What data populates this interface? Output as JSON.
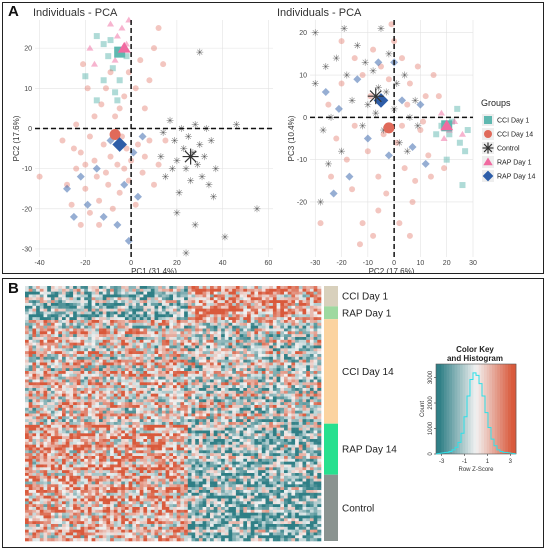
{
  "panel_a_letter": "A",
  "panel_b_letter": "B",
  "colors": {
    "cci1": "#5fb8b0",
    "cci14": "#e06a5a",
    "control": "#333333",
    "rap1": "#f06aa0",
    "rap14": "#2d5da8",
    "heat_low": "#2f7f86",
    "heat_high": "#d9593b",
    "heat_mid": "#f2f2f2",
    "bar_cci1": "#d8d0bc",
    "bar_rap1": "#9ed9a0",
    "bar_cci14": "#fbd3a0",
    "bar_rap14": "#27e08f",
    "bar_control": "#8a9390"
  },
  "legend": {
    "title": "Groups",
    "items": [
      {
        "key": "cci1",
        "label": "CCI Day 1",
        "shape": "square"
      },
      {
        "key": "cci14",
        "label": "CCI Day 14",
        "shape": "circle"
      },
      {
        "key": "control",
        "label": "Control",
        "shape": "asterisk"
      },
      {
        "key": "rap1",
        "label": "RAP Day 1",
        "shape": "triangle"
      },
      {
        "key": "rap14",
        "label": "RAP Day 14",
        "shape": "diamond"
      }
    ]
  },
  "heatmap": {
    "row_groups": [
      "CCI Day 1",
      "RAP Day 1",
      "CCI Day 14",
      "RAP Day 14",
      "Control"
    ],
    "group_fraction": [
      0.08,
      0.05,
      0.41,
      0.2,
      0.26
    ],
    "color_key": {
      "title_line1": "Color Key",
      "title_line2": "and Histogram",
      "ylabel": "Count",
      "yticks": [
        "0",
        "1000",
        "2000",
        "3000"
      ],
      "xlabel": "Row Z-Score",
      "xticks": [
        "-3",
        "-1",
        "1",
        "3"
      ]
    }
  },
  "chart_data": [
    {
      "type": "scatter",
      "title": "Individuals - PCA",
      "xlabel": "PC1 (31.4%)",
      "ylabel": "PC2 (17.6%)",
      "xlim": [
        -42,
        62
      ],
      "ylim": [
        -32,
        27
      ],
      "xticks": [
        -40,
        -20,
        0,
        20,
        40,
        60
      ],
      "yticks": [
        -30,
        -20,
        -10,
        0,
        10,
        20
      ],
      "grid": true,
      "reference_lines": {
        "x": 0,
        "y": 0
      },
      "centroids": [
        {
          "group": "CCI Day 1",
          "x": -5,
          "y": 19
        },
        {
          "group": "RAP Day 1",
          "x": -3,
          "y": 20
        },
        {
          "group": "CCI Day 14",
          "x": -7,
          "y": -1.5
        },
        {
          "group": "RAP Day 14",
          "x": -5,
          "y": -4
        },
        {
          "group": "Control",
          "x": 26,
          "y": -7
        }
      ],
      "series": [
        {
          "name": "CCI Day 1",
          "points": [
            [
              -15,
              23
            ],
            [
              -12,
              21
            ],
            [
              -10,
              18
            ],
            [
              -9,
              22
            ],
            [
              -8,
              15
            ],
            [
              -12,
              12
            ],
            [
              -7,
              9
            ],
            [
              -6,
              7
            ],
            [
              -5,
              12
            ],
            [
              -15,
              7
            ],
            [
              -2,
              18
            ],
            [
              -20,
              13
            ]
          ]
        },
        {
          "name": "CCI Day 14",
          "points": [
            [
              -30,
              -3
            ],
            [
              -25,
              -5
            ],
            [
              -22,
              -6
            ],
            [
              -20,
              -9
            ],
            [
              -18,
              -2
            ],
            [
              -16,
              -8
            ],
            [
              -15,
              -12
            ],
            [
              -14,
              -18
            ],
            [
              -12,
              -4
            ],
            [
              -11,
              -11
            ],
            [
              -10,
              -14
            ],
            [
              -9,
              -7
            ],
            [
              -8,
              -20
            ],
            [
              -6,
              -9
            ],
            [
              -5,
              -16
            ],
            [
              -4,
              -2
            ],
            [
              -3,
              -10
            ],
            [
              -2,
              -5
            ],
            [
              -1,
              -13
            ],
            [
              0,
              -8
            ],
            [
              2,
              -19
            ],
            [
              3,
              -4
            ],
            [
              5,
              -11
            ],
            [
              6,
              -7
            ],
            [
              8,
              -3
            ],
            [
              10,
              -14
            ],
            [
              12,
              -9
            ],
            [
              -28,
              -14
            ],
            [
              -26,
              -19
            ],
            [
              -24,
              -10
            ],
            [
              -20,
              -15
            ],
            [
              -18,
              -21
            ],
            [
              -22,
              -24
            ],
            [
              -16,
              3
            ],
            [
              -13,
              6
            ],
            [
              -11,
              10
            ],
            [
              -9,
              14
            ],
            [
              -7,
              3
            ],
            [
              -5,
              5
            ],
            [
              -3,
              8
            ],
            [
              -1,
              14
            ],
            [
              2,
              10
            ],
            [
              4,
              17
            ],
            [
              6,
              5
            ],
            [
              8,
              12
            ],
            [
              10,
              20
            ],
            [
              12,
              25
            ],
            [
              14,
              16
            ],
            [
              -19,
              10
            ],
            [
              -21,
              16
            ],
            [
              -24,
              1
            ],
            [
              -40,
              -12
            ],
            [
              15,
              -3
            ],
            [
              -14,
              -24
            ]
          ]
        },
        {
          "name": "Control",
          "points": [
            [
              14,
              -1
            ],
            [
              17,
              2
            ],
            [
              19,
              -3
            ],
            [
              20,
              -8
            ],
            [
              22,
              0
            ],
            [
              23,
              -5
            ],
            [
              24,
              -10
            ],
            [
              25,
              -2
            ],
            [
              26,
              -13
            ],
            [
              27,
              -6
            ],
            [
              28,
              1
            ],
            [
              29,
              -9
            ],
            [
              30,
              -4
            ],
            [
              31,
              -12
            ],
            [
              32,
              -7
            ],
            [
              33,
              0
            ],
            [
              34,
              -14
            ],
            [
              35,
              -3
            ],
            [
              21,
              -16
            ],
            [
              18,
              -10
            ],
            [
              15,
              -12
            ],
            [
              13,
              -7
            ],
            [
              37,
              -10
            ],
            [
              41,
              -27
            ],
            [
              55,
              -20
            ],
            [
              30,
              19
            ],
            [
              24,
              -31
            ],
            [
              20,
              -21
            ],
            [
              36,
              -17
            ],
            [
              28,
              -24
            ],
            [
              46,
              1
            ]
          ]
        },
        {
          "name": "RAP Day 1",
          "points": [
            [
              -18,
              20
            ],
            [
              -4,
              25
            ],
            [
              -6,
              23
            ],
            [
              -1,
              27
            ],
            [
              -9,
              26
            ],
            [
              -16,
              16
            ],
            [
              -2,
              21
            ],
            [
              -7,
              17
            ]
          ]
        },
        {
          "name": "RAP Day 14",
          "points": [
            [
              -28,
              -15
            ],
            [
              -22,
              -12
            ],
            [
              -19,
              -19
            ],
            [
              -15,
              -10
            ],
            [
              -12,
              -22
            ],
            [
              -9,
              -3
            ],
            [
              -6,
              -24
            ],
            [
              -3,
              -14
            ],
            [
              -1,
              -28
            ],
            [
              1,
              -6
            ],
            [
              3,
              -17
            ],
            [
              -25,
              -22
            ],
            [
              5,
              -2
            ]
          ]
        }
      ]
    },
    {
      "type": "scatter",
      "title": "Individuals - PCA",
      "xlabel": "PC2 (17.6%)",
      "ylabel": "PC3 (10.4%)",
      "xlim": [
        -32,
        30
      ],
      "ylim": [
        -33,
        23
      ],
      "xticks": [
        -30,
        -20,
        -10,
        0,
        10,
        20,
        30
      ],
      "yticks": [
        -20,
        -10,
        0,
        10,
        20
      ],
      "grid": true,
      "reference_lines": {
        "x": 0,
        "y": 0
      },
      "centroids": [
        {
          "group": "CCI Day 1",
          "x": 20,
          "y": -2
        },
        {
          "group": "RAP Day 1",
          "x": 20,
          "y": -2
        },
        {
          "group": "CCI Day 14",
          "x": -2,
          "y": -2.5
        },
        {
          "group": "RAP Day 14",
          "x": -5,
          "y": 4
        },
        {
          "group": "Control",
          "x": -7,
          "y": 5
        }
      ],
      "series": [
        {
          "name": "CCI Day 1",
          "points": [
            [
              22,
              -1
            ],
            [
              25,
              -6
            ],
            [
              27,
              -8
            ],
            [
              21,
              -4
            ],
            [
              18,
              -2
            ],
            [
              24,
              2
            ],
            [
              28,
              -3
            ],
            [
              20,
              -10
            ],
            [
              16,
              -4
            ],
            [
              26,
              -16
            ]
          ]
        },
        {
          "name": "CCI Day 14",
          "points": [
            [
              -20,
              18
            ],
            [
              -15,
              14
            ],
            [
              -12,
              10
            ],
            [
              -8,
              16
            ],
            [
              -5,
              12
            ],
            [
              -2,
              9
            ],
            [
              0,
              18
            ],
            [
              3,
              14
            ],
            [
              6,
              8
            ],
            [
              9,
              12
            ],
            [
              12,
              5
            ],
            [
              15,
              10
            ],
            [
              -25,
              3
            ],
            [
              -22,
              -5
            ],
            [
              -18,
              -10
            ],
            [
              -15,
              -2
            ],
            [
              -10,
              -8
            ],
            [
              -6,
              -14
            ],
            [
              -3,
              -18
            ],
            [
              1,
              -6
            ],
            [
              4,
              -12
            ],
            [
              7,
              -20
            ],
            [
              10,
              -3
            ],
            [
              13,
              -9
            ],
            [
              -28,
              -25
            ],
            [
              -12,
              -25
            ],
            [
              -6,
              -22
            ],
            [
              -16,
              -17
            ],
            [
              2,
              -25
            ],
            [
              8,
              -15
            ],
            [
              -20,
              8
            ],
            [
              -9,
              5
            ],
            [
              -4,
              -4
            ],
            [
              5,
              3
            ],
            [
              11,
              -1
            ],
            [
              14,
              -14
            ],
            [
              17,
              5
            ],
            [
              -24,
              -14
            ],
            [
              -1,
              22
            ],
            [
              -13,
              -30
            ],
            [
              -8,
              -28
            ],
            [
              19,
              -12
            ],
            [
              6,
              -28
            ],
            [
              3,
              -2
            ]
          ]
        },
        {
          "name": "Control",
          "points": [
            [
              -30,
              20
            ],
            [
              -26,
              12
            ],
            [
              -22,
              14
            ],
            [
              -18,
              10
            ],
            [
              -16,
              4
            ],
            [
              -14,
              17
            ],
            [
              -12,
              -2
            ],
            [
              -10,
              3
            ],
            [
              -8,
              11
            ],
            [
              -6,
              7
            ],
            [
              -4,
              -3
            ],
            [
              -2,
              15
            ],
            [
              0,
              2
            ],
            [
              2,
              -6
            ],
            [
              4,
              10
            ],
            [
              6,
              0
            ],
            [
              -24,
              0
            ],
            [
              -20,
              -8
            ],
            [
              -28,
              -20
            ],
            [
              -30,
              8
            ],
            [
              -11,
              13
            ],
            [
              -7,
              1
            ],
            [
              -3,
              6
            ],
            [
              1,
              8
            ],
            [
              5,
              -8
            ],
            [
              8,
              4
            ],
            [
              -19,
              21
            ],
            [
              -5,
              21
            ],
            [
              -25,
              -11
            ],
            [
              -27,
              -3
            ],
            [
              9,
              -2
            ]
          ]
        },
        {
          "name": "RAP Day 1",
          "points": [
            [
              21,
              -3
            ],
            [
              23,
              -1
            ],
            [
              19,
              -5
            ],
            [
              26,
              -4
            ],
            [
              18,
              1
            ]
          ]
        },
        {
          "name": "RAP Day 14",
          "points": [
            [
              -26,
              6
            ],
            [
              -21,
              2
            ],
            [
              -14,
              9
            ],
            [
              -10,
              -5
            ],
            [
              -6,
              13
            ],
            [
              -2,
              -9
            ],
            [
              3,
              4
            ],
            [
              7,
              -7
            ],
            [
              -17,
              -14
            ],
            [
              12,
              -11
            ],
            [
              -23,
              -18
            ],
            [
              0,
              13
            ],
            [
              10,
              3
            ]
          ]
        }
      ]
    }
  ]
}
